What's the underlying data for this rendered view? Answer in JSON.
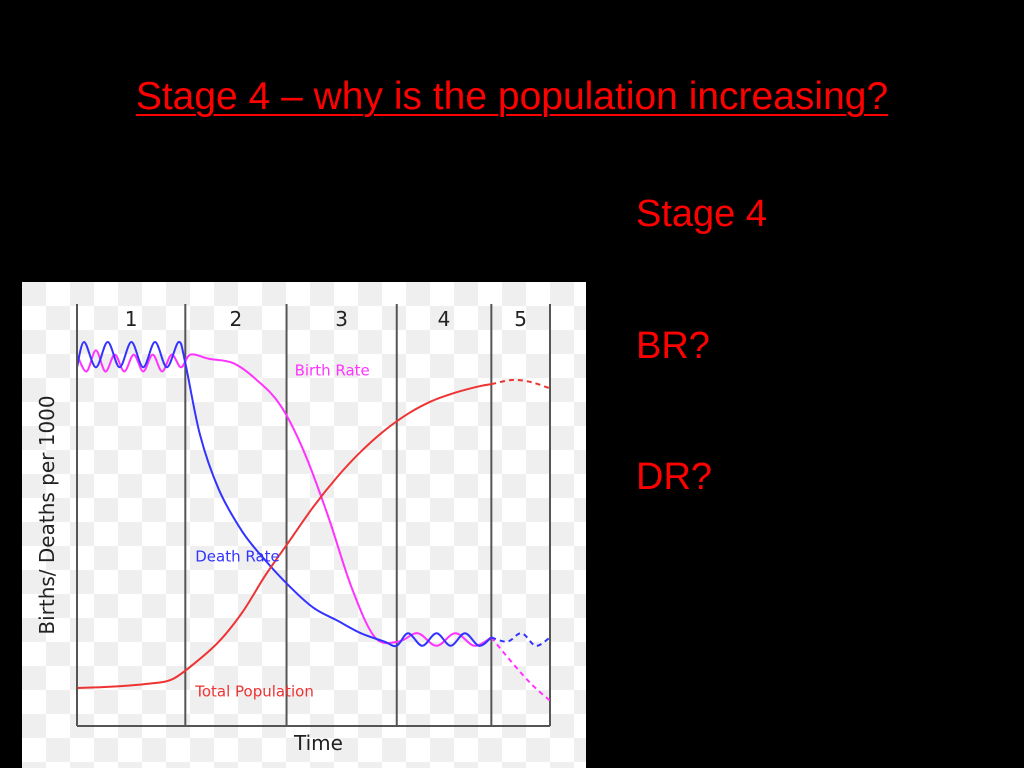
{
  "slide": {
    "title": "Stage 4 – why is the population increasing?",
    "side_labels": [
      "Stage 4",
      "BR?",
      "DR?"
    ]
  },
  "colors": {
    "background": "#000000",
    "title_text": "#ff0000",
    "birth_rate": "#ff33ff",
    "death_rate": "#3333ff",
    "total_population": "#ee3333",
    "stage_dividers": "#555555"
  },
  "chart_data": {
    "type": "line",
    "title": "",
    "xlabel": "Time",
    "ylabel": "Births/ Deaths per 1000",
    "x_unit": "time (unitless)",
    "xlim": [
      0,
      10
    ],
    "ylim": [
      0,
      10
    ],
    "grid": "light checkered background",
    "stages": [
      {
        "label": "1",
        "x_start": 0.0,
        "x_end": 2.29
      },
      {
        "label": "2",
        "x_start": 2.29,
        "x_end": 4.43
      },
      {
        "label": "3",
        "x_start": 4.43,
        "x_end": 6.76
      },
      {
        "label": "4",
        "x_start": 6.76,
        "x_end": 8.76
      },
      {
        "label": "5",
        "x_start": 8.76,
        "x_end": 10.0
      }
    ],
    "series": [
      {
        "name": "Birth Rate",
        "color": "#ff33ff",
        "label_at": [
          4.6,
          8.3
        ],
        "x": [
          0.0,
          0.2,
          0.4,
          0.6,
          0.8,
          1.0,
          1.2,
          1.4,
          1.6,
          1.8,
          2.0,
          2.2,
          2.4,
          2.8,
          3.3,
          3.8,
          4.3,
          4.8,
          5.3,
          5.8,
          6.3,
          6.8,
          7.2,
          7.6,
          8.0,
          8.4,
          8.76
        ],
        "y": [
          8.8,
          8.4,
          8.9,
          8.4,
          8.8,
          8.4,
          8.8,
          8.4,
          8.8,
          8.4,
          8.8,
          8.5,
          8.8,
          8.7,
          8.6,
          8.2,
          7.6,
          6.5,
          5.0,
          3.3,
          2.1,
          2.0,
          2.2,
          1.9,
          2.2,
          1.9,
          2.1
        ],
        "dashed_continuation": {
          "x": [
            8.76,
            9.2,
            9.6,
            10.0
          ],
          "y": [
            2.1,
            1.5,
            1.0,
            0.6
          ]
        }
      },
      {
        "name": "Death Rate",
        "color": "#3333ff",
        "label_at": [
          2.5,
          3.9
        ],
        "x": [
          0.0,
          0.15,
          0.4,
          0.65,
          0.9,
          1.15,
          1.4,
          1.65,
          1.9,
          2.15,
          2.29,
          2.6,
          3.0,
          3.5,
          4.0,
          4.5,
          5.0,
          5.5,
          6.0,
          6.5,
          6.76,
          7.0,
          7.3,
          7.6,
          7.9,
          8.2,
          8.5,
          8.76
        ],
        "y": [
          8.5,
          9.1,
          8.5,
          9.1,
          8.5,
          9.1,
          8.5,
          9.1,
          8.5,
          9.1,
          8.6,
          6.9,
          5.6,
          4.6,
          3.9,
          3.3,
          2.8,
          2.5,
          2.2,
          2.0,
          1.9,
          2.2,
          1.9,
          2.2,
          1.9,
          2.2,
          1.9,
          2.1
        ],
        "dashed_continuation": {
          "x": [
            8.76,
            9.1,
            9.4,
            9.7,
            10.0
          ],
          "y": [
            2.1,
            2.0,
            2.2,
            1.9,
            2.1
          ]
        }
      },
      {
        "name": "Total Population",
        "color": "#ee3333",
        "label_at": [
          2.5,
          0.7
        ],
        "x": [
          0.0,
          0.5,
          1.0,
          1.5,
          2.0,
          2.5,
          3.0,
          3.5,
          4.0,
          4.5,
          5.0,
          5.5,
          6.0,
          6.5,
          7.0,
          7.5,
          8.0,
          8.5,
          8.76
        ],
        "y": [
          0.9,
          0.92,
          0.95,
          1.0,
          1.1,
          1.5,
          2.0,
          2.7,
          3.6,
          4.4,
          5.2,
          5.9,
          6.5,
          7.0,
          7.4,
          7.7,
          7.9,
          8.05,
          8.1
        ],
        "dashed_continuation": {
          "x": [
            8.76,
            9.2,
            9.6,
            10.0
          ],
          "y": [
            8.1,
            8.2,
            8.15,
            8.0
          ]
        }
      }
    ]
  }
}
